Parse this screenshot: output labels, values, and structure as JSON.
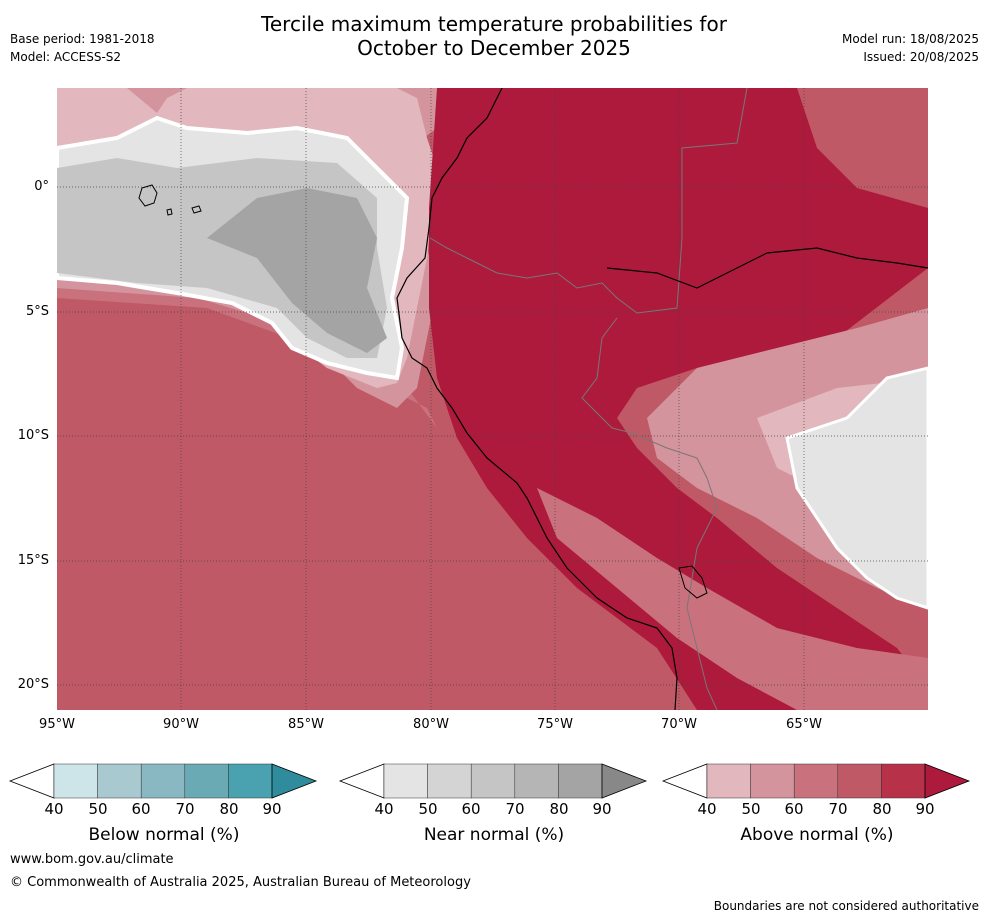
{
  "title_line1": "Tercile maximum temperature probabilities for",
  "title_line2": "October to December 2025",
  "base_period": "Base period: 1981-2018",
  "model": "Model: ACCESS-S2",
  "model_run": "Model run: 18/08/2025",
  "issued": "Issued: 20/08/2025",
  "lat_labels": [
    "0°",
    "5°S",
    "10°S",
    "15°S",
    "20°S"
  ],
  "lon_labels": [
    "95°W",
    "90°W",
    "85°W",
    "80°W",
    "75°W",
    "70°W",
    "65°W"
  ],
  "colorbars": {
    "below": {
      "title": "Below normal (%)",
      "ticks": [
        "40",
        "50",
        "60",
        "70",
        "80",
        "90"
      ],
      "colors": [
        "#cde4e9",
        "#a9c9d0",
        "#89b8c3",
        "#6aaab5",
        "#4aa2b0",
        "#2f8c9d"
      ]
    },
    "near": {
      "title": "Near normal (%)",
      "ticks": [
        "40",
        "50",
        "60",
        "70",
        "80",
        "90"
      ],
      "colors": [
        "#e4e4e4",
        "#d4d4d4",
        "#c5c5c5",
        "#b5b5b5",
        "#a4a4a4",
        "#888888"
      ]
    },
    "above": {
      "title": "Above normal (%)",
      "ticks": [
        "40",
        "50",
        "60",
        "70",
        "80",
        "90"
      ],
      "colors": [
        "#e2b7bd",
        "#d4949d",
        "#c9727e",
        "#c05966",
        "#b73249",
        "#ad1a3c"
      ]
    }
  },
  "footer_url": "www.bom.gov.au/climate",
  "footer_copyright": "© Commonwealth of Australia 2025, Australian Bureau of Meteorology",
  "footer_disclaimer": "Boundaries are not considered authoritative"
}
